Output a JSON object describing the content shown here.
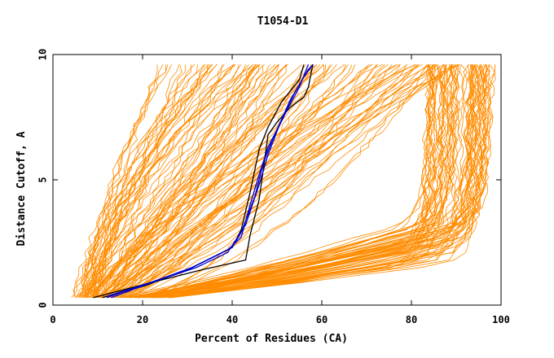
{
  "chart_data": {
    "type": "line",
    "title": "T1054-D1",
    "xlabel": "Percent of Residues (CA)",
    "ylabel": "Distance Cutoff, A",
    "xlim": [
      0,
      100
    ],
    "ylim": [
      0,
      10
    ],
    "x_ticks": [
      "0",
      "20",
      "40",
      "60",
      "80",
      "100"
    ],
    "y_ticks": [
      "0",
      "5",
      "10"
    ],
    "grid": false,
    "colors": {
      "background_series": "#ff8c00",
      "highlight_dark": "#000000",
      "highlight_blue": "#0000cc"
    },
    "highlight_series": [
      {
        "color": "#000000",
        "points": [
          [
            9,
            0.3
          ],
          [
            22,
            0.9
          ],
          [
            33,
            1.4
          ],
          [
            43,
            1.8
          ],
          [
            44,
            2.8
          ],
          [
            46,
            4.2
          ],
          [
            47,
            5.5
          ],
          [
            48,
            6.8
          ],
          [
            50,
            7.3
          ],
          [
            53,
            7.9
          ],
          [
            56,
            8.3
          ],
          [
            57,
            8.7
          ],
          [
            58,
            9.6
          ]
        ]
      },
      {
        "color": "#000000",
        "points": [
          [
            11,
            0.3
          ],
          [
            21,
            0.8
          ],
          [
            31,
            1.5
          ],
          [
            40,
            2.3
          ],
          [
            42,
            3.0
          ],
          [
            44,
            4.5
          ],
          [
            46,
            6.2
          ],
          [
            48,
            7.1
          ],
          [
            51,
            8.1
          ],
          [
            55,
            9.0
          ],
          [
            56,
            9.6
          ]
        ]
      },
      {
        "color": "#0000cc",
        "points": [
          [
            12,
            0.3
          ],
          [
            20,
            0.8
          ],
          [
            30,
            1.4
          ],
          [
            39,
            2.2
          ],
          [
            42,
            2.7
          ],
          [
            44,
            4.0
          ],
          [
            46,
            5.2
          ],
          [
            48,
            6.3
          ],
          [
            50,
            7.0
          ],
          [
            53,
            8.2
          ],
          [
            56,
            9.1
          ],
          [
            58,
            9.6
          ]
        ]
      },
      {
        "color": "#0000cc",
        "points": [
          [
            12,
            0.35
          ],
          [
            21,
            0.85
          ],
          [
            31,
            1.5
          ],
          [
            40,
            2.3
          ],
          [
            42,
            2.9
          ],
          [
            45,
            4.3
          ],
          [
            47,
            5.7
          ],
          [
            49,
            6.6
          ],
          [
            52,
            7.7
          ],
          [
            55,
            8.7
          ],
          [
            57,
            9.6
          ]
        ]
      },
      {
        "color": "#0000cc",
        "points": [
          [
            13,
            0.3
          ],
          [
            22,
            0.9
          ],
          [
            32,
            1.5
          ],
          [
            39,
            2.1
          ],
          [
            43,
            3.2
          ],
          [
            46,
            4.8
          ],
          [
            48,
            6.0
          ],
          [
            51,
            7.4
          ],
          [
            54,
            8.5
          ],
          [
            57,
            9.4
          ],
          [
            58,
            9.6
          ]
        ]
      }
    ]
  }
}
